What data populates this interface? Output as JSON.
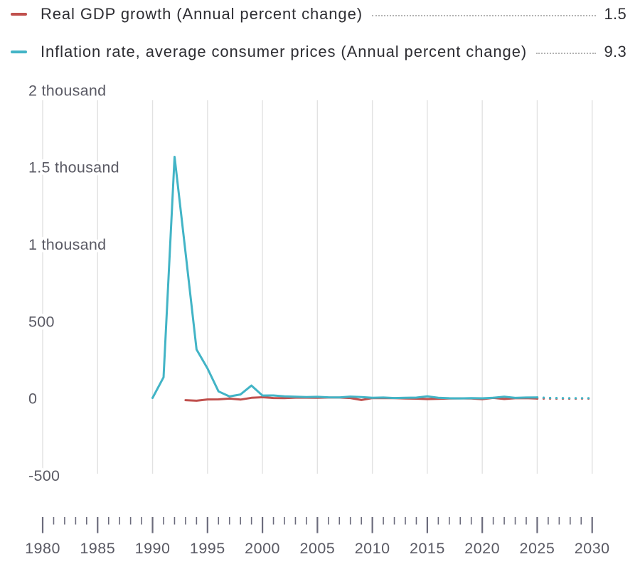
{
  "legend": [
    {
      "id": "real-gdp-growth",
      "label": "Real GDP growth (Annual percent change)",
      "value": "1.5",
      "color": "#c0504d"
    },
    {
      "id": "inflation-rate",
      "label": "Inflation rate, average consumer prices (Annual percent change)",
      "value": "9.3",
      "color": "#42b4c6"
    }
  ],
  "chart_data": {
    "type": "line",
    "title": "",
    "xlabel": "",
    "ylabel": "",
    "x_range": [
      1980,
      2030
    ],
    "ylim": [
      -650,
      2070
    ],
    "grid": "vertical-only",
    "legend_position": "top",
    "projection_style": "dotted-after-2025",
    "x_tick_labels": [
      "1980",
      "1985",
      "1990",
      "1995",
      "2000",
      "2005",
      "2010",
      "2015",
      "2020",
      "2025",
      "2030"
    ],
    "y_ticks": [
      {
        "value": 2000,
        "label": "2 thousand"
      },
      {
        "value": 1500,
        "label": "1.5 thousand"
      },
      {
        "value": 1000,
        "label": "1 thousand"
      },
      {
        "value": 500,
        "label": "500"
      },
      {
        "value": 0,
        "label": "0"
      },
      {
        "value": -500,
        "label": "-500"
      }
    ],
    "style": {
      "grid_color": "#e2e2e2",
      "tick_color": "#6b6b7c",
      "axis_text_color": "#5a5a64",
      "leader_dot_color": "#b3b3b3"
    },
    "series": [
      {
        "id": "real-gdp-growth",
        "name": "Real GDP growth (Annual percent change)",
        "color": "#c0504d",
        "solid_until": 2025,
        "x": [
          1993,
          1994,
          1995,
          1996,
          1997,
          1998,
          1999,
          2000,
          2001,
          2002,
          2003,
          2004,
          2005,
          2006,
          2007,
          2008,
          2009,
          2010,
          2011,
          2012,
          2013,
          2014,
          2015,
          2016,
          2017,
          2018,
          2019,
          2020,
          2021,
          2022,
          2023,
          2024,
          2025,
          2026,
          2027,
          2028,
          2029,
          2030
        ],
        "values": [
          -8.7,
          -12.6,
          -4.1,
          -3.6,
          1.4,
          -5.3,
          6.4,
          10.0,
          5.1,
          4.7,
          7.3,
          7.2,
          6.4,
          8.2,
          8.5,
          5.2,
          -7.8,
          4.5,
          4.3,
          4.0,
          1.8,
          0.7,
          -2.0,
          0.2,
          1.8,
          2.8,
          2.2,
          -2.7,
          5.9,
          -1.2,
          3.6,
          4.1,
          1.5,
          1.2,
          1.1,
          1.1,
          1.2,
          1.2
        ]
      },
      {
        "id": "inflation-rate",
        "name": "Inflation rate, average consumer prices (Annual percent change)",
        "color": "#42b4c6",
        "solid_until": 2025,
        "x": [
          1990,
          1991,
          1992,
          1993,
          1994,
          1995,
          1996,
          1997,
          1998,
          1999,
          2000,
          2001,
          2002,
          2003,
          2004,
          2005,
          2006,
          2007,
          2008,
          2009,
          2010,
          2011,
          2012,
          2013,
          2014,
          2015,
          2016,
          2017,
          2018,
          2019,
          2020,
          2021,
          2022,
          2023,
          2024,
          2025,
          2026,
          2027,
          2028,
          2029,
          2030
        ],
        "values": [
          5.6,
          140,
          1570,
          950,
          320,
          197,
          48,
          15,
          28,
          86,
          21,
          21.5,
          15.8,
          13.7,
          10.9,
          12.7,
          9.7,
          9.0,
          14.1,
          11.6,
          6.9,
          8.4,
          5.1,
          6.8,
          7.8,
          15.5,
          7.0,
          3.7,
          2.9,
          4.5,
          3.4,
          6.7,
          13.8,
          5.9,
          8.4,
          9.3,
          6.0,
          4.5,
          4.0,
          4.0,
          4.0
        ]
      }
    ]
  }
}
